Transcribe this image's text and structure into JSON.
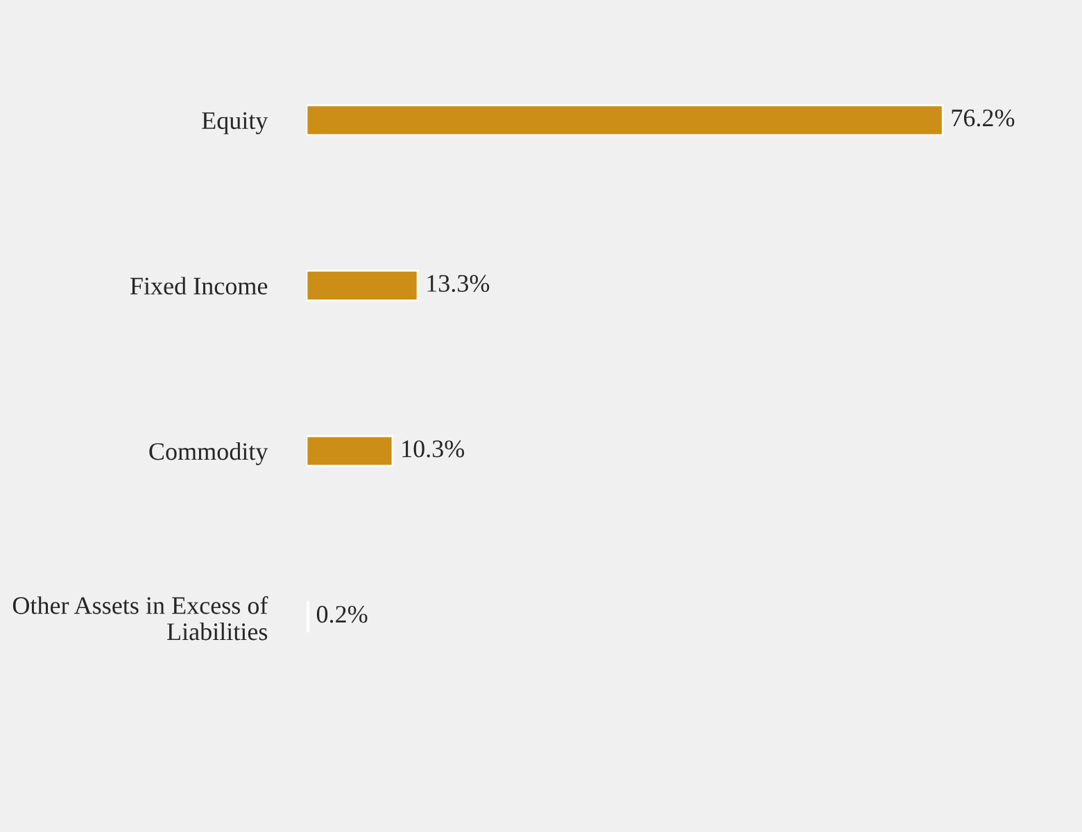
{
  "chart_data": {
    "type": "bar",
    "orientation": "horizontal",
    "categories": [
      "Equity",
      "Fixed Income",
      "Commodity",
      "Other Assets in Excess of\nLiabilities"
    ],
    "values": [
      76.2,
      13.3,
      10.3,
      0.2
    ],
    "color": "#cc8e17",
    "value_labels": [
      "76.2%",
      "13.3%",
      "10.3%",
      "0.2%"
    ],
    "grid": false,
    "legend": false,
    "tick_labels": "y"
  }
}
